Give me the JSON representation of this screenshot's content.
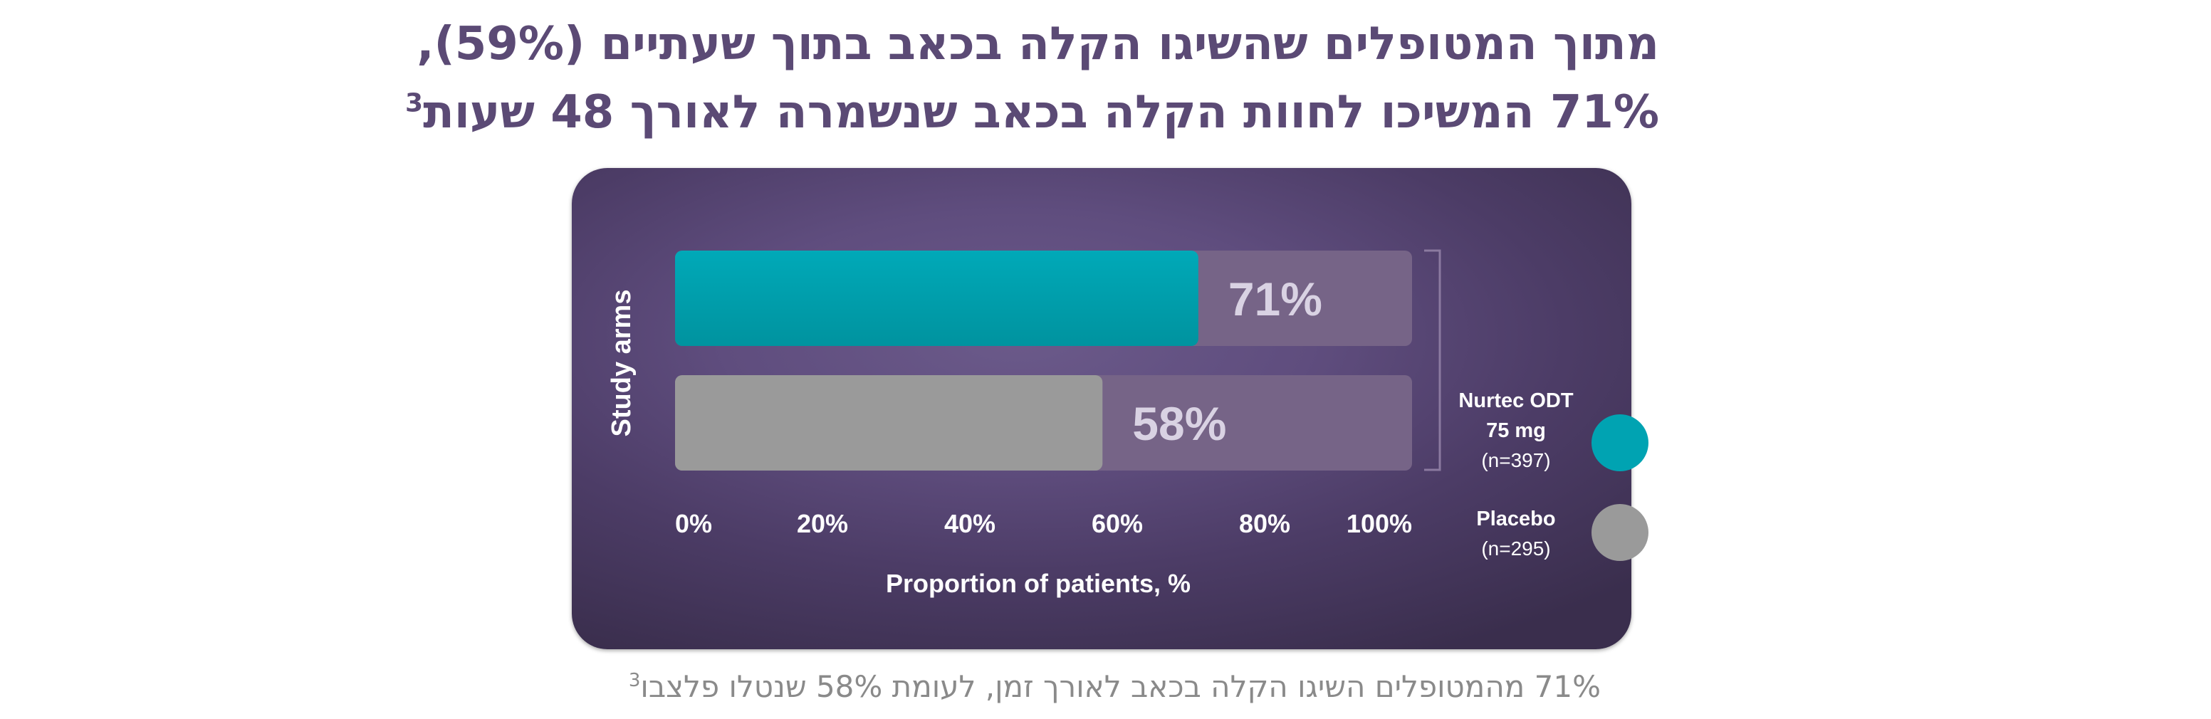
{
  "title": {
    "line1": "מתוך המטופלים שהשיגו הקלה בכאב בתוך שעתיים (59%),",
    "line2": "71% המשיכו לחוות הקלה בכאב שנשמרה לאורך 48 שעות",
    "superscript": "3"
  },
  "footnote": {
    "text": "71% מהמטופלים השיגו הקלה בכאב לאורך זמן, לעומת 58% שנטלו פלצבו",
    "superscript": "3"
  },
  "chart_data": {
    "type": "bar",
    "orientation": "horizontal",
    "ylabel": "Study arms",
    "xlabel": "Proportion of patients, %",
    "xlim": [
      0,
      100
    ],
    "xticks": [
      "0%",
      "20%",
      "40%",
      "60%",
      "80%",
      "100%"
    ],
    "series": [
      {
        "value": 71,
        "label": "71%",
        "color": "#00a3b2"
      },
      {
        "value": 58,
        "label": "58%",
        "color": "#9a9a9a"
      }
    ],
    "legend": [
      {
        "name_line1": "Nurtec ODT",
        "name_line2": "75 mg",
        "n": "(n=397)",
        "color": "#00a3b2"
      },
      {
        "name_line1": "Placebo",
        "name_line2": "",
        "n": "(n=295)",
        "color": "#9a9a9a"
      }
    ],
    "legend_position": "right",
    "track_color": "#766487"
  }
}
